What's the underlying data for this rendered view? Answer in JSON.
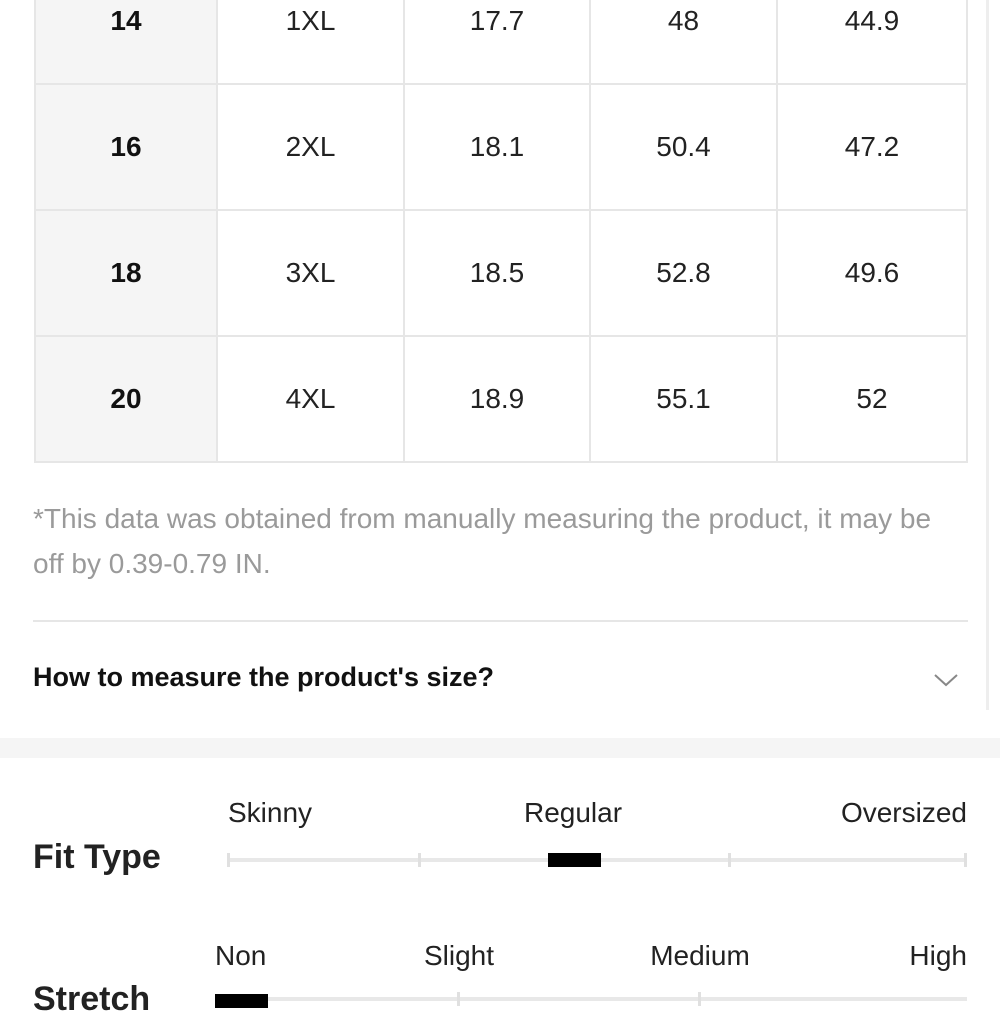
{
  "table": {
    "rows": [
      [
        "14",
        "1XL",
        "17.7",
        "48",
        "44.9"
      ],
      [
        "16",
        "2XL",
        "18.1",
        "50.4",
        "47.2"
      ],
      [
        "18",
        "3XL",
        "18.5",
        "52.8",
        "49.6"
      ],
      [
        "20",
        "4XL",
        "18.9",
        "55.1",
        "52"
      ]
    ]
  },
  "note": "*This data was obtained from manually measuring the product, it may be off by 0.39-0.79 IN.",
  "how_to_measure": {
    "title": "How to measure the product's size?"
  },
  "fit_type": {
    "label": "Fit Type",
    "scale": [
      "Skinny",
      "Regular",
      "Oversized"
    ]
  },
  "stretch": {
    "label": "Stretch",
    "scale": [
      "Non",
      "Slight",
      "Medium",
      "High"
    ]
  }
}
